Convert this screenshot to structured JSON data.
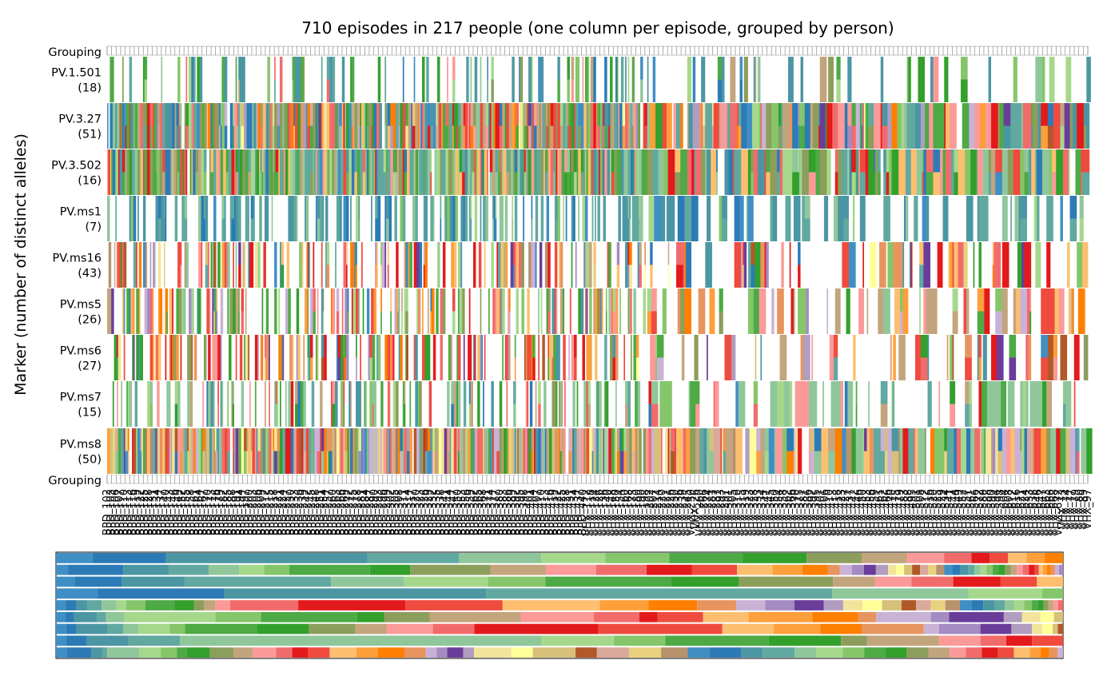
{
  "chart_data": {
    "type": "heatmap",
    "title": "710 episodes in 217 people (one column per episode, grouped by person)",
    "ylabel": "Marker (number of distinct alleles)",
    "grouping_label": "Grouping",
    "n_episodes": 710,
    "n_people": 217,
    "markers": [
      {
        "name": "PV.1.501",
        "n_alleles": "(18)",
        "missing_rate": 0.7
      },
      {
        "name": "PV.3.27",
        "n_alleles": "(51)",
        "missing_rate": 0.02
      },
      {
        "name": "PV.3.502",
        "n_alleles": "(16)",
        "missing_rate": 0.02
      },
      {
        "name": "PV.ms1",
        "n_alleles": "(7)",
        "missing_rate": 0.5
      },
      {
        "name": "PV.ms16",
        "n_alleles": "(43)",
        "missing_rate": 0.5
      },
      {
        "name": "PV.ms5",
        "n_alleles": "(26)",
        "missing_rate": 0.45
      },
      {
        "name": "PV.ms6",
        "n_alleles": "(27)",
        "missing_rate": 0.5
      },
      {
        "name": "PV.ms7",
        "n_alleles": "(15)",
        "missing_rate": 0.55
      },
      {
        "name": "PV.ms8",
        "n_alleles": "(50)",
        "missing_rate": 0.02
      }
    ],
    "person_ticks": [
      "BPD_102",
      "BPD_103",
      "BPD_106",
      "BPD_107",
      "BPD_110",
      "BPD_113",
      "BPD_116",
      "BPD_119",
      "BPD_122",
      "BPD_125",
      "BPD_128",
      "BPD_131",
      "BPD_134",
      "BPD_137",
      "BPD_140",
      "BPD_143",
      "BPD_146",
      "BPD_149",
      "BPD_152",
      "BPD_155",
      "BPD_158",
      "BPD_161",
      "BPD_164",
      "BPD_167",
      "BPD_170",
      "BPD_173",
      "BPD_176",
      "BPD_179",
      "BPD_182",
      "BPD_185",
      "BPD_188",
      "BPD_191",
      "BPD_194",
      "BPD_197",
      "BPD_200",
      "BPD_203",
      "BPD_206",
      "BPD_209",
      "BPD_212",
      "BPD_215",
      "BPD_218",
      "BPD_221",
      "BPD_224",
      "BPD_227",
      "BPD_230",
      "BPD_233",
      "BPD_236",
      "BPD_239",
      "BPD_242",
      "BPD_245",
      "BPD_248",
      "BPD_251",
      "BPD_254",
      "BPD_257",
      "BPD_260",
      "BPD_263",
      "BPD_266",
      "BPD_269",
      "BPD_272",
      "BPD_275",
      "BPD_278",
      "BPD_281",
      "BPD_284",
      "BPD_287",
      "BPD_290",
      "BPD_293",
      "BPD_296",
      "BPD_299",
      "BPD_302",
      "BPD_305",
      "BPD_308",
      "BPD_311",
      "BPD_314",
      "BPD_317",
      "BPD_320",
      "BPD_323",
      "BPD_326",
      "BPD_329",
      "BPD_332",
      "BPD_335",
      "BPD_338",
      "BPD_341",
      "BPD_344",
      "BPD_347",
      "BPD_350",
      "BPD_353",
      "BPD_356",
      "BPD_359",
      "BPD_362",
      "BPD_365",
      "BPD_368",
      "BPD_371",
      "BPD_374",
      "BPD_377",
      "BPD_380",
      "BPD_383",
      "BPD_386",
      "BPD_389",
      "BPD_392",
      "BPD_395",
      "BPD_398",
      "BPD_401",
      "BPD_404",
      "BPD_407",
      "BPD_410",
      "BPD_413",
      "BPD_416",
      "BPD_419",
      "BPD_422",
      "BPD_425",
      "BPD_428",
      "BPD_431",
      "BPD_434",
      "BPD_437",
      "BPD_440",
      "VHX_112",
      "VHX_118",
      "VHX_124",
      "VHX_126",
      "VHX_136",
      "VHX_140",
      "VHX_148",
      "VHX_150",
      "VHX_154",
      "VHX_160",
      "VHX_168",
      "VHX_175",
      "VHX_180",
      "VHX_190",
      "VHX_198",
      "VHX_202",
      "VHX_207",
      "VHX_214",
      "VHX_220",
      "VHX_221",
      "VHX_226",
      "VHX_230",
      "VHX_236",
      "VHX_239",
      "VHX_245",
      "VHX_250",
      "VHX_26",
      "VHX_260",
      "VHX_266",
      "VHX_274",
      "VHX_281",
      "VHX_287",
      "VHX_293",
      "VHX_297",
      "VHX_301",
      "VHX_305",
      "VHX_310",
      "VHX_315",
      "VHX_319",
      "VHX_323",
      "VHX_328",
      "VHX_333",
      "VHX_334",
      "VHX_341",
      "VHX_345",
      "VHX_350",
      "VHX_354",
      "VHX_358",
      "VHX_362",
      "VHX_366",
      "VHX_370",
      "VHX_375",
      "VHX_381",
      "VHX_386",
      "VHX_392",
      "VHX_395",
      "VHX_401",
      "VHX_406",
      "VHX_410",
      "VHX_413",
      "VHX_418",
      "VHX_423",
      "VHX_427",
      "VHX_437",
      "VHX_442",
      "VHX_446",
      "VHX_450",
      "VHX_453",
      "VHX_456",
      "VHX_459",
      "VHX_461",
      "VHX_462",
      "VHX_466",
      "VHX_470",
      "VHX_475",
      "VHX_479",
      "VHX_483",
      "VHX_488",
      "VHX_495",
      "VHX_501",
      "VHX_508",
      "VHX_512",
      "VHX_516",
      "VHX_520",
      "VHX_525",
      "VHX_529",
      "VHX_534",
      "VHX_541",
      "VHX_544",
      "VHX_549",
      "VHX_552",
      "VHX_557",
      "VHX_561",
      "VHX_566",
      "VHX_572",
      "VHX_580",
      "VHX_588",
      "VHX_590",
      "VHX_594",
      "VHX_598",
      "VHX_604",
      "VHX_608",
      "VHX_612",
      "VHX_616",
      "VHX_621",
      "VHX_624",
      "VHX_633",
      "VHX_638",
      "VHX_646",
      "VHX_647",
      "VHX_663",
      "VHX_666",
      "VHX_668",
      "VHX_672",
      "VHX_73",
      "VHX_74",
      "VHX_77",
      "VHX_79",
      "VHX_80",
      "VHX_89",
      "VHX_97"
    ],
    "allele_frequencies": [
      [
        0.04,
        0.08,
        0.22,
        0.1,
        0.09,
        0.07,
        0.07,
        0.08,
        0.07,
        0.06,
        0.05,
        0.04,
        0.03,
        0.02,
        0.02,
        0.02,
        0.02,
        0.02
      ],
      [
        0.012,
        0.055,
        0.045,
        0.04,
        0.03,
        0.025,
        0.025,
        0.08,
        0.04,
        0.08,
        0.055,
        0.05,
        0.05,
        0.045,
        0.045,
        0.035,
        0.03,
        0.025,
        0.012,
        0.012,
        0.012,
        0.012,
        0.012,
        0.008,
        0.008,
        0.008,
        0.008,
        0.008,
        0.008,
        0.008,
        0.008,
        0.008,
        0.008,
        0.006,
        0.006,
        0.006,
        0.006,
        0.006,
        0.006,
        0.006,
        0.006,
        0.006,
        0.006,
        0.006,
        0.004,
        0.004,
        0.004,
        0.004,
        0.004,
        0.004,
        0.004
      ],
      [
        0.018,
        0.045,
        0.06,
        0.14,
        0.07,
        0.08,
        0.055,
        0.12,
        0.065,
        0.09,
        0.04,
        0.035,
        0.04,
        0.045,
        0.035,
        0.025
      ],
      [
        0.04,
        0.12,
        0.25,
        0.33,
        0.13,
        0.07,
        0.02
      ],
      [
        0.01,
        0.011,
        0.011,
        0.015,
        0.015,
        0.01,
        0.02,
        0.03,
        0.02,
        0.01,
        0.012,
        0.015,
        0.07,
        0.11,
        0.1,
        0.1,
        0.05,
        0.05,
        0.04,
        0.03,
        0.03,
        0.03,
        0.02,
        0.02,
        0.02,
        0.02,
        0.015,
        0.015,
        0.015,
        0.015,
        0.012,
        0.012,
        0.012,
        0.01,
        0.01,
        0.01,
        0.008,
        0.006,
        0.006,
        0.005,
        0.005,
        0.005,
        0.005
      ],
      [
        0.01,
        0.01,
        0.025,
        0.01,
        0.02,
        0.1,
        0.05,
        0.105,
        0.03,
        0.05,
        0.1,
        0.08,
        0.05,
        0.02,
        0.05,
        0.05,
        0.07,
        0.05,
        0.02,
        0.06,
        0.02,
        0.06,
        0.02,
        0.02,
        0.015,
        0.01
      ],
      [
        0.01,
        0.01,
        0.03,
        0.015,
        0.015,
        0.03,
        0.015,
        0.07,
        0.05,
        0.045,
        0.03,
        0.045,
        0.04,
        0.12,
        0.12,
        0.05,
        0.045,
        0.04,
        0.06,
        0.015,
        0.04,
        0.03,
        0.02,
        0.01,
        0.01,
        0.005,
        0.005
      ],
      [
        0.01,
        0.02,
        0.04,
        0.05,
        0.35,
        0.07,
        0.05,
        0.1,
        0.07,
        0.025,
        0.07,
        0.04,
        0.025,
        0.025,
        0.03
      ],
      [
        0.01,
        0.023,
        0.01,
        0.005,
        0.03,
        0.02,
        0.015,
        0.009,
        0.022,
        0.022,
        0.018,
        0.022,
        0.015,
        0.015,
        0.02,
        0.025,
        0.02,
        0.025,
        0.02,
        0.01,
        0.01,
        0.015,
        0.01,
        0.035,
        0.02,
        0.04,
        0.02,
        0.03,
        0.03,
        0.025,
        0.02,
        0.03,
        0.02,
        0.03,
        0.02,
        0.025,
        0.02,
        0.02,
        0.02,
        0.02,
        0.02,
        0.015,
        0.015,
        0.015,
        0.015,
        0.015,
        0.01,
        0.008,
        0.008,
        0.005
      ]
    ]
  },
  "palette": [
    "#3f8fc5",
    "#2c7bb6",
    "#4c96a3",
    "#61a8a0",
    "#8fc79b",
    "#a6d88c",
    "#85c66a",
    "#4daa45",
    "#33a02c",
    "#8c9e5b",
    "#c3a57d",
    "#fb9a99",
    "#f26b6b",
    "#e31a1c",
    "#ef4b3f",
    "#fdbf6f",
    "#fd9f3a",
    "#ff7f00",
    "#e8945f",
    "#cab2d6",
    "#a48bc2",
    "#6a3d9a",
    "#b09dc0",
    "#f2e49a",
    "#ffff99",
    "#d6c07a",
    "#b15928",
    "#dba89c",
    "#e8d27f",
    "#b8926c"
  ]
}
